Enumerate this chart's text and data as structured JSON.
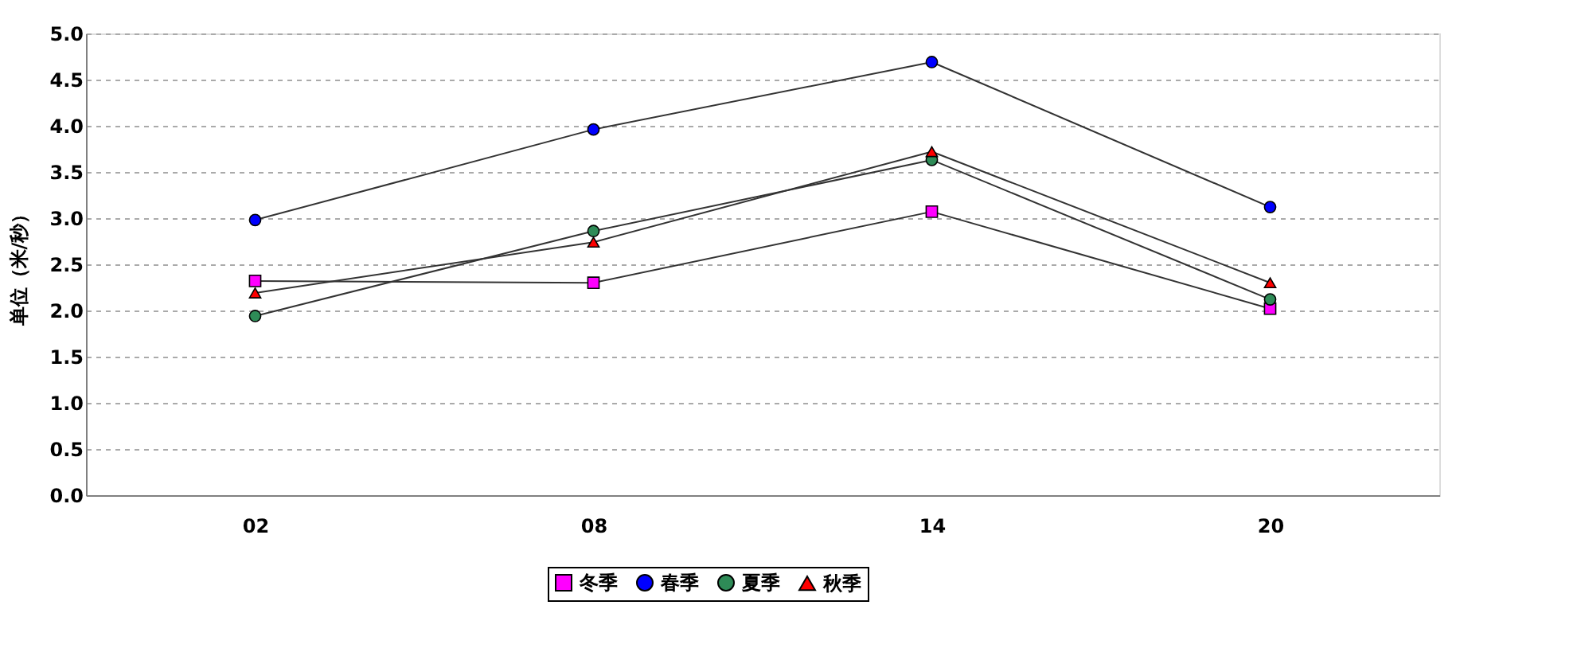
{
  "chart_data": {
    "type": "line",
    "ylabel": "单位（米/秒）",
    "categories": [
      "02",
      "08",
      "14",
      "20"
    ],
    "series": [
      {
        "name": "冬季",
        "color": "#ff00ff",
        "marker": "square",
        "values": [
          2.32,
          2.3,
          3.07,
          2.02
        ]
      },
      {
        "name": "春季",
        "color": "#0000ff",
        "marker": "circle",
        "values": [
          2.98,
          3.96,
          4.69,
          3.12
        ]
      },
      {
        "name": "夏季",
        "color": "#2e8b57",
        "marker": "circle",
        "values": [
          1.94,
          2.86,
          3.63,
          2.12
        ]
      },
      {
        "name": "秋季",
        "color": "#ff0000",
        "marker": "triangle",
        "values": [
          2.19,
          2.74,
          3.72,
          2.3
        ]
      }
    ],
    "ylim": [
      0,
      5
    ],
    "yticks": [
      {
        "value": 0,
        "label": "0.0"
      },
      {
        "value": 0.5,
        "label": "0.5"
      },
      {
        "value": 1,
        "label": "1.0"
      },
      {
        "value": 1.5,
        "label": "1.5"
      },
      {
        "value": 2,
        "label": "2.0"
      },
      {
        "value": 2.5,
        "label": "2.5"
      },
      {
        "value": 3,
        "label": "3.0"
      },
      {
        "value": 3.5,
        "label": "3.5"
      },
      {
        "value": 4,
        "label": "4.0"
      },
      {
        "value": 4.5,
        "label": "4.5"
      },
      {
        "value": 5,
        "label": "5.0"
      }
    ],
    "grid": "y",
    "legend": "bottom",
    "line_style": "solid"
  }
}
